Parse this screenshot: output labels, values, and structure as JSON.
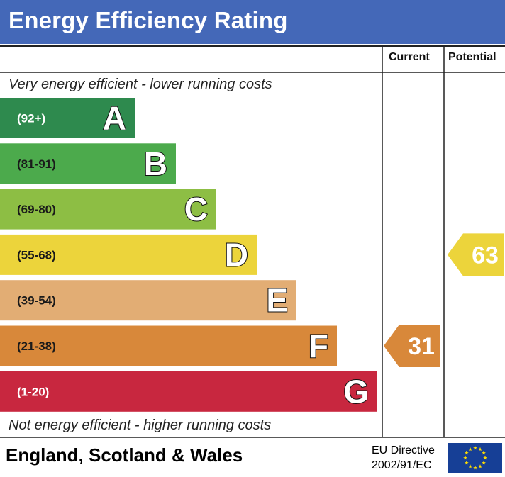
{
  "title": "Energy Efficiency Rating",
  "columns": {
    "current": "Current",
    "potential": "Potential"
  },
  "top_caption": "Very energy efficient - lower running costs",
  "bottom_caption": "Not energy efficient - higher running costs",
  "footer": {
    "region": "England, Scotland & Wales",
    "directive_line1": "EU Directive",
    "directive_line2": "2002/91/EC"
  },
  "colors": {
    "title_bar": "#4468b8",
    "A": "#2e8a4e",
    "B": "#4caa4c",
    "C": "#8dbe44",
    "D": "#ecd43b",
    "E": "#e2ad74",
    "F": "#d8883a",
    "G": "#c8273f",
    "eu_flag": "#163f96",
    "eu_stars": "#ffdd00"
  },
  "chart_data": {
    "type": "bar",
    "categories": [
      "A",
      "B",
      "C",
      "D",
      "E",
      "F",
      "G"
    ],
    "ranges": [
      "(92+)",
      "(81-91)",
      "(69-80)",
      "(55-68)",
      "(39-54)",
      "(21-38)",
      "(1-20)"
    ],
    "current": {
      "value": 31,
      "band": "F"
    },
    "potential": {
      "value": 63,
      "band": "D"
    }
  }
}
